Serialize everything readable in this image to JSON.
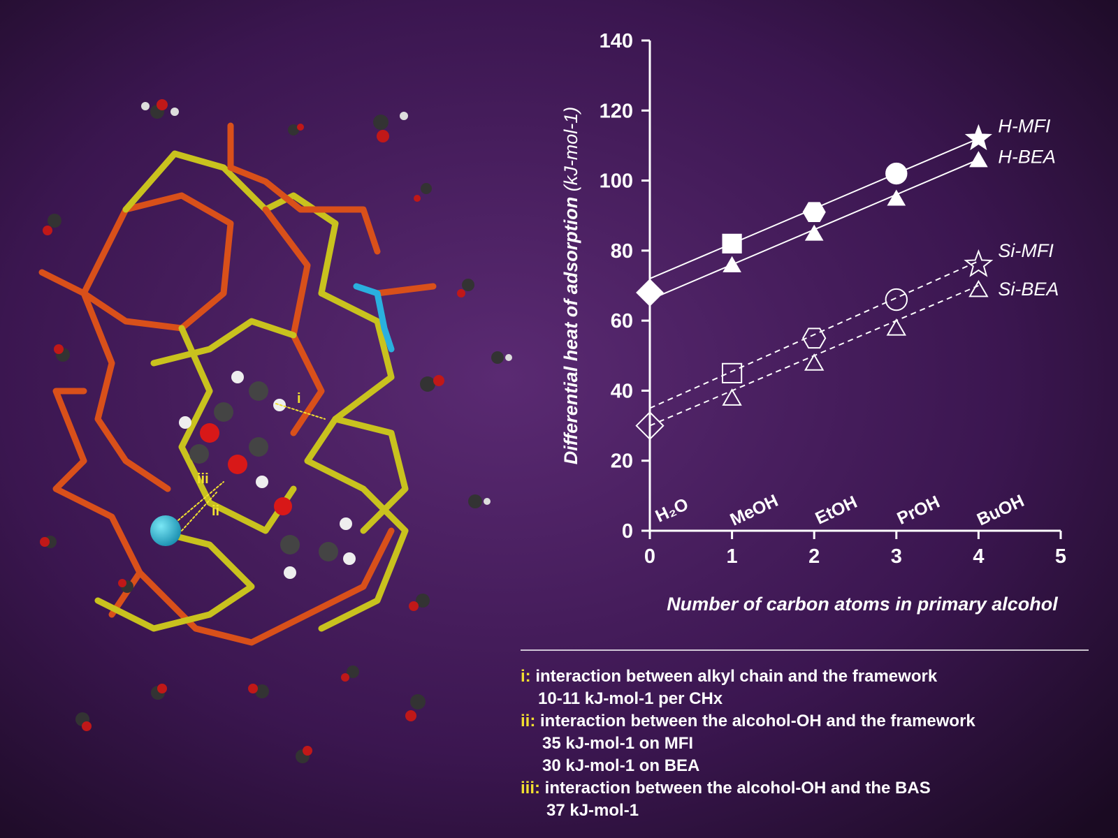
{
  "chart_data": {
    "type": "line",
    "ylabel": "Differential heat of adsorption",
    "ylabel_unit": "(kJ-mol-1)",
    "xlabel": "Number of carbon atoms in primary alcohol",
    "x": [
      0,
      1,
      2,
      3,
      4
    ],
    "categories": [
      "H₂O",
      "MeOH",
      "EtOH",
      "PrOH",
      "BuOH"
    ],
    "xlim": [
      0,
      5
    ],
    "xticks": [
      0,
      1,
      2,
      3,
      4,
      5
    ],
    "ylim": [
      0,
      140
    ],
    "yticks": [
      0,
      20,
      40,
      60,
      80,
      100,
      120,
      140
    ],
    "series": [
      {
        "name": "H-MFI",
        "color": "#ffffff",
        "filled": true,
        "dashed": false,
        "values": [
          68,
          82,
          91,
          102,
          112
        ],
        "markers": [
          "diamond",
          "square",
          "hexagon",
          "circle",
          "star"
        ],
        "fit_x": [
          0,
          4
        ],
        "fit": [
          72,
          112
        ]
      },
      {
        "name": "H-BEA",
        "color": "#ffffff",
        "filled": true,
        "dashed": false,
        "values": [
          null,
          76,
          85,
          95,
          106
        ],
        "markers": [
          null,
          "triangle",
          "triangle",
          "triangle",
          "triangle"
        ],
        "fit_x": [
          0,
          4
        ],
        "fit": [
          66,
          106
        ]
      },
      {
        "name": "Si-MFI",
        "color": "#ffffff",
        "filled": false,
        "dashed": true,
        "values": [
          30,
          45,
          55,
          66,
          76
        ],
        "markers": [
          "diamond",
          "square",
          "hexagon",
          "circle",
          "star"
        ],
        "fit_x": [
          0,
          4
        ],
        "fit": [
          35,
          77
        ]
      },
      {
        "name": "Si-BEA",
        "color": "#ffffff",
        "filled": false,
        "dashed": true,
        "values": [
          null,
          38,
          48,
          58,
          69
        ],
        "markers": [
          null,
          "triangle",
          "triangle",
          "triangle",
          "triangle"
        ],
        "fit_x": [
          0,
          4
        ],
        "fit": [
          30,
          70
        ]
      }
    ],
    "notes": [
      {
        "key": "i:",
        "text": "interaction between alkyl chain and the framework",
        "details": [
          "10-11 kJ-mol-1 per CHx"
        ]
      },
      {
        "key": "ii:",
        "text": "interaction between the alcohol-OH and the framework",
        "details": [
          "35 kJ-mol-1 on MFI",
          "30 kJ-mol-1 on BEA"
        ]
      },
      {
        "key": "iii:",
        "text": "interaction between the alcohol-OH and the BAS",
        "details": [
          "37 kJ-mol-1"
        ]
      }
    ],
    "figure_labels": [
      "i",
      "ii",
      "iii"
    ]
  }
}
